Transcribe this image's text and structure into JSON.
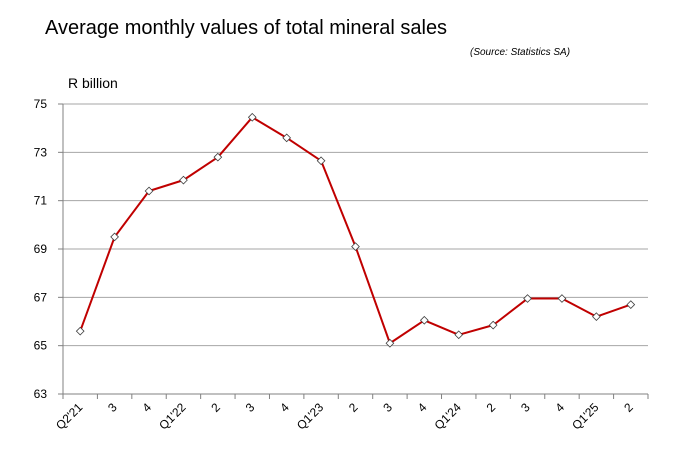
{
  "chart_data": {
    "type": "line",
    "title": "Average monthly values of total mineral sales",
    "source": "(Source: Statistics SA)",
    "ylabel": "R billion",
    "xlabel": "",
    "ylim": [
      63,
      75
    ],
    "yticks": [
      63,
      65,
      67,
      69,
      71,
      73,
      75
    ],
    "grid": true,
    "categories": [
      "Q2'21",
      "3",
      "4",
      "Q1'22",
      "2",
      "3",
      "4",
      "Q1'23",
      "2",
      "3",
      "4",
      "Q1'24",
      "2",
      "3",
      "4",
      "Q1'25",
      "2"
    ],
    "series": [
      {
        "values": [
          65.6,
          69.5,
          71.4,
          71.85,
          72.8,
          74.45,
          73.6,
          72.65,
          69.1,
          65.1,
          66.05,
          65.45,
          65.85,
          66.95,
          66.95,
          66.2,
          66.7
        ],
        "color": "#c00000",
        "marker": "diamond"
      }
    ]
  }
}
